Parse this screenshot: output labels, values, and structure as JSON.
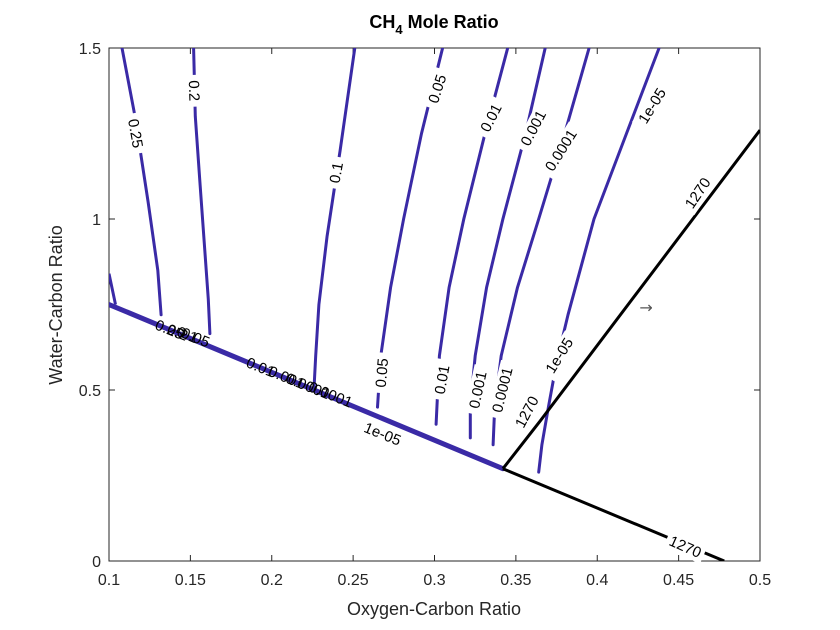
{
  "chart_data": {
    "type": "contour",
    "title": {
      "main": "CH",
      "sub": "4",
      "rest": " Mole Ratio"
    },
    "xlabel": "Oxygen-Carbon Ratio",
    "ylabel": "Water-Carbon Ratio",
    "xlim": [
      0.1,
      0.5
    ],
    "ylim": [
      0,
      1.5
    ],
    "xticks": [
      {
        "v": 0.1,
        "label": "0.1"
      },
      {
        "v": 0.15,
        "label": "0.15"
      },
      {
        "v": 0.2,
        "label": "0.2"
      },
      {
        "v": 0.25,
        "label": "0.25"
      },
      {
        "v": 0.3,
        "label": "0.3"
      },
      {
        "v": 0.35,
        "label": "0.35"
      },
      {
        "v": 0.4,
        "label": "0.4"
      },
      {
        "v": 0.45,
        "label": "0.45"
      },
      {
        "v": 0.5,
        "label": "0.5"
      }
    ],
    "yticks": [
      {
        "v": 0,
        "label": "0"
      },
      {
        "v": 0.5,
        "label": "0.5"
      },
      {
        "v": 1,
        "label": "1"
      },
      {
        "v": 1.5,
        "label": "1.5"
      }
    ],
    "colors": {
      "ch4": "#3a2aa6",
      "temp": "#000000",
      "axis": "#262626"
    },
    "boundary": [
      [
        0.1,
        0.75
      ],
      [
        0.342,
        0.27
      ]
    ],
    "ch4_levels": [
      {
        "level": "0.25",
        "points": [
          [
            0.108,
            1.5
          ],
          [
            0.116,
            1.3
          ],
          [
            0.124,
            1.05
          ],
          [
            0.13,
            0.85
          ],
          [
            0.132,
            0.72
          ]
        ],
        "labels": [
          {
            "text": "0.25",
            "at": [
              0.116,
              1.25
            ],
            "rot": 80
          }
        ]
      },
      {
        "level": "0.2",
        "points": [
          [
            0.152,
            1.5
          ],
          [
            0.153,
            1.3
          ],
          [
            0.156,
            1.1
          ],
          [
            0.159,
            0.9
          ],
          [
            0.161,
            0.765
          ],
          [
            0.162,
            0.665
          ]
        ],
        "labels": [
          {
            "text": "0.2",
            "at": [
              0.152,
              1.375
            ],
            "rot": 88
          }
        ]
      },
      {
        "level": "0.1",
        "points": [
          [
            0.251,
            1.5
          ],
          [
            0.242,
            1.2
          ],
          [
            0.234,
            0.95
          ],
          [
            0.229,
            0.75
          ],
          [
            0.227,
            0.6
          ],
          [
            0.226,
            0.51
          ]
        ],
        "labels": [
          {
            "text": "0.1",
            "at": [
              0.24,
              1.135
            ],
            "rot": -80
          }
        ]
      },
      {
        "level": "0.05",
        "points": [
          [
            0.305,
            1.5
          ],
          [
            0.292,
            1.25
          ],
          [
            0.281,
            1.0
          ],
          [
            0.273,
            0.8
          ],
          [
            0.267,
            0.6
          ],
          [
            0.265,
            0.45
          ]
        ],
        "labels": [
          {
            "text": "0.05",
            "at": [
              0.302,
              1.38
            ],
            "rot": -72
          },
          {
            "text": "0.05",
            "at": [
              0.268,
              0.55
            ],
            "rot": -85
          }
        ]
      },
      {
        "level": "0.01",
        "points": [
          [
            0.345,
            1.5
          ],
          [
            0.331,
            1.25
          ],
          [
            0.318,
            1.0
          ],
          [
            0.309,
            0.8
          ],
          [
            0.303,
            0.6
          ],
          [
            0.301,
            0.4
          ]
        ],
        "labels": [
          {
            "text": "0.01",
            "at": [
              0.335,
              1.295
            ],
            "rot": -63
          },
          {
            "text": "0.01",
            "at": [
              0.305,
              0.53
            ],
            "rot": -80
          }
        ]
      },
      {
        "level": "0.001",
        "points": [
          [
            0.368,
            1.5
          ],
          [
            0.356,
            1.25
          ],
          [
            0.342,
            1.0
          ],
          [
            0.332,
            0.8
          ],
          [
            0.325,
            0.6
          ],
          [
            0.322,
            0.45
          ],
          [
            0.322,
            0.36
          ]
        ],
        "labels": [
          {
            "text": "0.001",
            "at": [
              0.361,
              1.265
            ],
            "rot": -62
          },
          {
            "text": "0.001",
            "at": [
              0.327,
              0.5
            ],
            "rot": -78
          }
        ]
      },
      {
        "level": "0.0001",
        "points": [
          [
            0.395,
            1.5
          ],
          [
            0.38,
            1.25
          ],
          [
            0.364,
            1.0
          ],
          [
            0.351,
            0.8
          ],
          [
            0.341,
            0.6
          ],
          [
            0.337,
            0.45
          ],
          [
            0.336,
            0.34
          ]
        ],
        "labels": [
          {
            "text": "0.0001",
            "at": [
              0.378,
              1.2
            ],
            "rot": -58
          },
          {
            "text": "0.0001",
            "at": [
              0.342,
              0.5
            ],
            "rot": -76
          }
        ]
      },
      {
        "level": "1e-05",
        "points": [
          [
            0.438,
            1.5
          ],
          [
            0.418,
            1.25
          ],
          [
            0.398,
            1.0
          ],
          [
            0.382,
            0.72
          ],
          [
            0.375,
            0.58
          ],
          [
            0.37,
            0.45
          ],
          [
            0.366,
            0.34
          ],
          [
            0.364,
            0.26
          ]
        ],
        "labels": [
          {
            "text": "1e-05",
            "at": [
              0.434,
              1.33
            ],
            "rot": -58
          },
          {
            "text": "1e-05",
            "at": [
              0.377,
              0.6
            ],
            "rot": -58
          },
          {
            "text": "1e-05",
            "at": [
              0.268,
              0.37
            ],
            "rot": 22
          }
        ]
      }
    ],
    "temp_levels": [
      {
        "level": "1270",
        "points": [
          [
            0.342,
            0.27
          ],
          [
            0.365,
            0.41
          ],
          [
            0.5,
            1.26
          ]
        ],
        "labels": [
          {
            "text": "1270",
            "at": [
              0.462,
              1.075
            ],
            "rot": -56
          },
          {
            "text": "1270",
            "at": [
              0.357,
              0.435
            ],
            "rot": -62
          }
        ]
      },
      {
        "level": "1270",
        "points": [
          [
            0.342,
            0.27
          ],
          [
            0.478,
            0.0
          ]
        ],
        "labels": [
          {
            "text": "1270",
            "at": [
              0.454,
              0.04
            ],
            "rot": 24
          }
        ]
      }
    ],
    "boundary_labels": [
      {
        "text": "0.25",
        "at": [
          0.137,
          0.675
        ],
        "rot": 22
      },
      {
        "text": "0.2",
        "at": [
          0.142,
          0.667
        ],
        "rot": 22
      },
      {
        "text": "0.1",
        "at": [
          0.148,
          0.66
        ],
        "rot": 22
      },
      {
        "text": "0.05",
        "at": [
          0.153,
          0.652
        ],
        "rot": 22
      },
      {
        "text": "0.01",
        "at": [
          0.193,
          0.565
        ],
        "rot": 22
      },
      {
        "text": "0.001",
        "at": [
          0.209,
          0.535
        ],
        "rot": 22
      },
      {
        "text": "0.0001",
        "at": [
          0.222,
          0.51
        ],
        "rot": 22
      },
      {
        "text": "0.0001",
        "at": [
          0.236,
          0.485
        ],
        "rot": 22
      }
    ],
    "annotation": {
      "text": "→",
      "at": [
        0.43,
        0.74
      ]
    }
  }
}
